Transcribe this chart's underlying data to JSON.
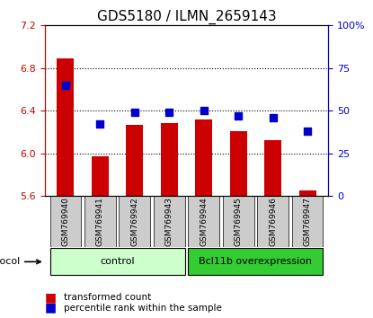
{
  "title": "GDS5180 / ILMN_2659143",
  "samples": [
    "GSM769940",
    "GSM769941",
    "GSM769942",
    "GSM769943",
    "GSM769944",
    "GSM769945",
    "GSM769946",
    "GSM769947"
  ],
  "bar_values": [
    6.89,
    5.97,
    6.27,
    6.28,
    6.32,
    6.21,
    6.12,
    5.65
  ],
  "dot_values": [
    65,
    42,
    49,
    49,
    50,
    47,
    46,
    38
  ],
  "ylim_left": [
    5.6,
    7.2
  ],
  "ylim_right": [
    0,
    100
  ],
  "yticks_left": [
    5.6,
    6.0,
    6.4,
    6.8,
    7.2
  ],
  "yticks_right": [
    0,
    25,
    50,
    75,
    100
  ],
  "ytick_labels_left": [
    "5.6",
    "6.0",
    "6.4",
    "6.8",
    "7.2"
  ],
  "ytick_labels_right": [
    "0",
    "25",
    "50",
    "75",
    "100%"
  ],
  "bar_color": "#cc0000",
  "dot_color": "#0000cc",
  "grid_color": "#000000",
  "bg_color": "#ffffff",
  "plot_bg": "#ffffff",
  "xlabel_color": "#000000",
  "left_axis_color": "#cc0000",
  "right_axis_color": "#0000cc",
  "control_samples": [
    "GSM769940",
    "GSM769941",
    "GSM769942",
    "GSM769943"
  ],
  "overexpression_samples": [
    "GSM769944",
    "GSM769945",
    "GSM769946",
    "GSM769947"
  ],
  "control_label": "control",
  "overexpression_label": "Bcl11b overexpression",
  "protocol_label": "protocol",
  "legend_bar_label": "transformed count",
  "legend_dot_label": "percentile rank within the sample",
  "control_bg": "#ccffcc",
  "overexpression_bg": "#33cc33",
  "sample_bg": "#cccccc",
  "bar_width": 0.5
}
